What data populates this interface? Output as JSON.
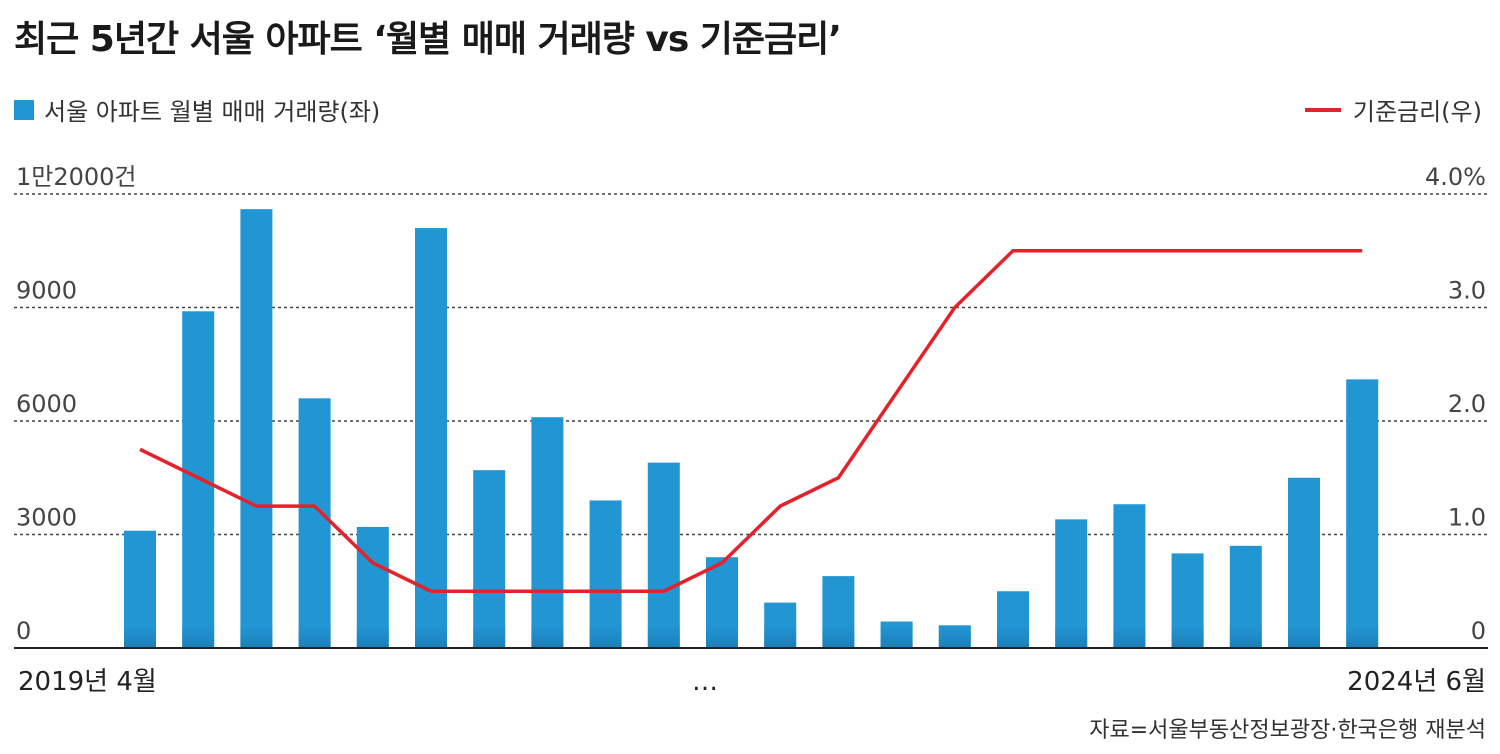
{
  "title": "최근 5년간 서울 아파트 ‘월별 매매 거래량 vs 기준금리’",
  "legend": {
    "left_label": "서울 아파트 월별 매매 거래량(좌)",
    "right_label": "기준금리(우)"
  },
  "colors": {
    "bar": "#2196d3",
    "line": "#e4222b",
    "grid": "#444444"
  },
  "source": "자료=서울부동산정보광장·한국은행 재분석",
  "chart_data": {
    "type": "bar",
    "left_ticks": [
      "0",
      "3000",
      "6000",
      "9000",
      "1만2000건"
    ],
    "right_ticks": [
      "0",
      "1.0",
      "2.0",
      "3.0",
      "4.0%"
    ],
    "y_left_lim": [
      0,
      12000
    ],
    "y_right_lim": [
      0,
      4.0
    ],
    "x_labels": {
      "start": "2019년 4월",
      "middle": "…",
      "end": "2024년 6월"
    },
    "series": [
      {
        "name": "서울 아파트 월별 매매 거래량(좌)",
        "type": "bar",
        "axis": "left",
        "values": [
          3100,
          8900,
          11600,
          6600,
          3200,
          11100,
          4700,
          6100,
          3900,
          4900,
          2400,
          1200,
          1900,
          700,
          600,
          1500,
          3400,
          3800,
          2500,
          2700,
          4500,
          7100
        ]
      },
      {
        "name": "기준금리(우)",
        "type": "line",
        "axis": "right",
        "values": [
          1.75,
          1.5,
          1.25,
          1.25,
          0.75,
          0.5,
          0.5,
          0.5,
          0.5,
          0.5,
          0.75,
          1.25,
          1.5,
          2.25,
          3.0,
          3.5,
          3.5,
          3.5,
          3.5,
          3.5,
          3.5,
          3.5
        ]
      }
    ]
  }
}
